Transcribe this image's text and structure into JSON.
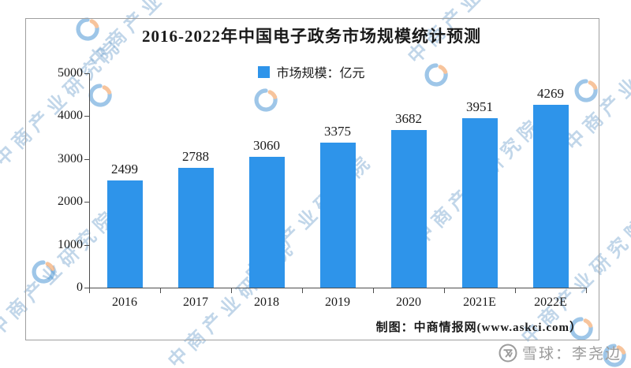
{
  "chart_data": {
    "type": "bar",
    "title": "2016-2022年中国电子政务市场规模统计预测",
    "categories": [
      "2016",
      "2017",
      "2018",
      "2019",
      "2020",
      "2021E",
      "2022E"
    ],
    "values": [
      2499,
      2788,
      3060,
      3375,
      3682,
      3951,
      4269
    ],
    "legend": "市场规模：亿元",
    "legend_position": "top-center",
    "unit": "亿元",
    "ylim": [
      0,
      5000
    ],
    "yticks": [
      0,
      1000,
      2000,
      3000,
      4000,
      5000
    ],
    "grid": false,
    "data_labels": true,
    "bar_color": "#2E94EA"
  },
  "source": "制图：中商情报网(www.askci.com）",
  "watermark": {
    "text": "中商产业研究院"
  },
  "footer_watermark": {
    "text": "雪球：李尧边",
    "icon": "xueqiu-logo"
  },
  "colors": {
    "bar": "#2E94EA",
    "watermark_text": "#6ea0cd",
    "logo_blue": "#3f8fd2",
    "logo_orange": "#f08a3c",
    "axis": "#4d4d4d",
    "text": "#1a1a1a",
    "footer_gray": "#9b9b9b",
    "frame_border": "#9f9f9f"
  }
}
